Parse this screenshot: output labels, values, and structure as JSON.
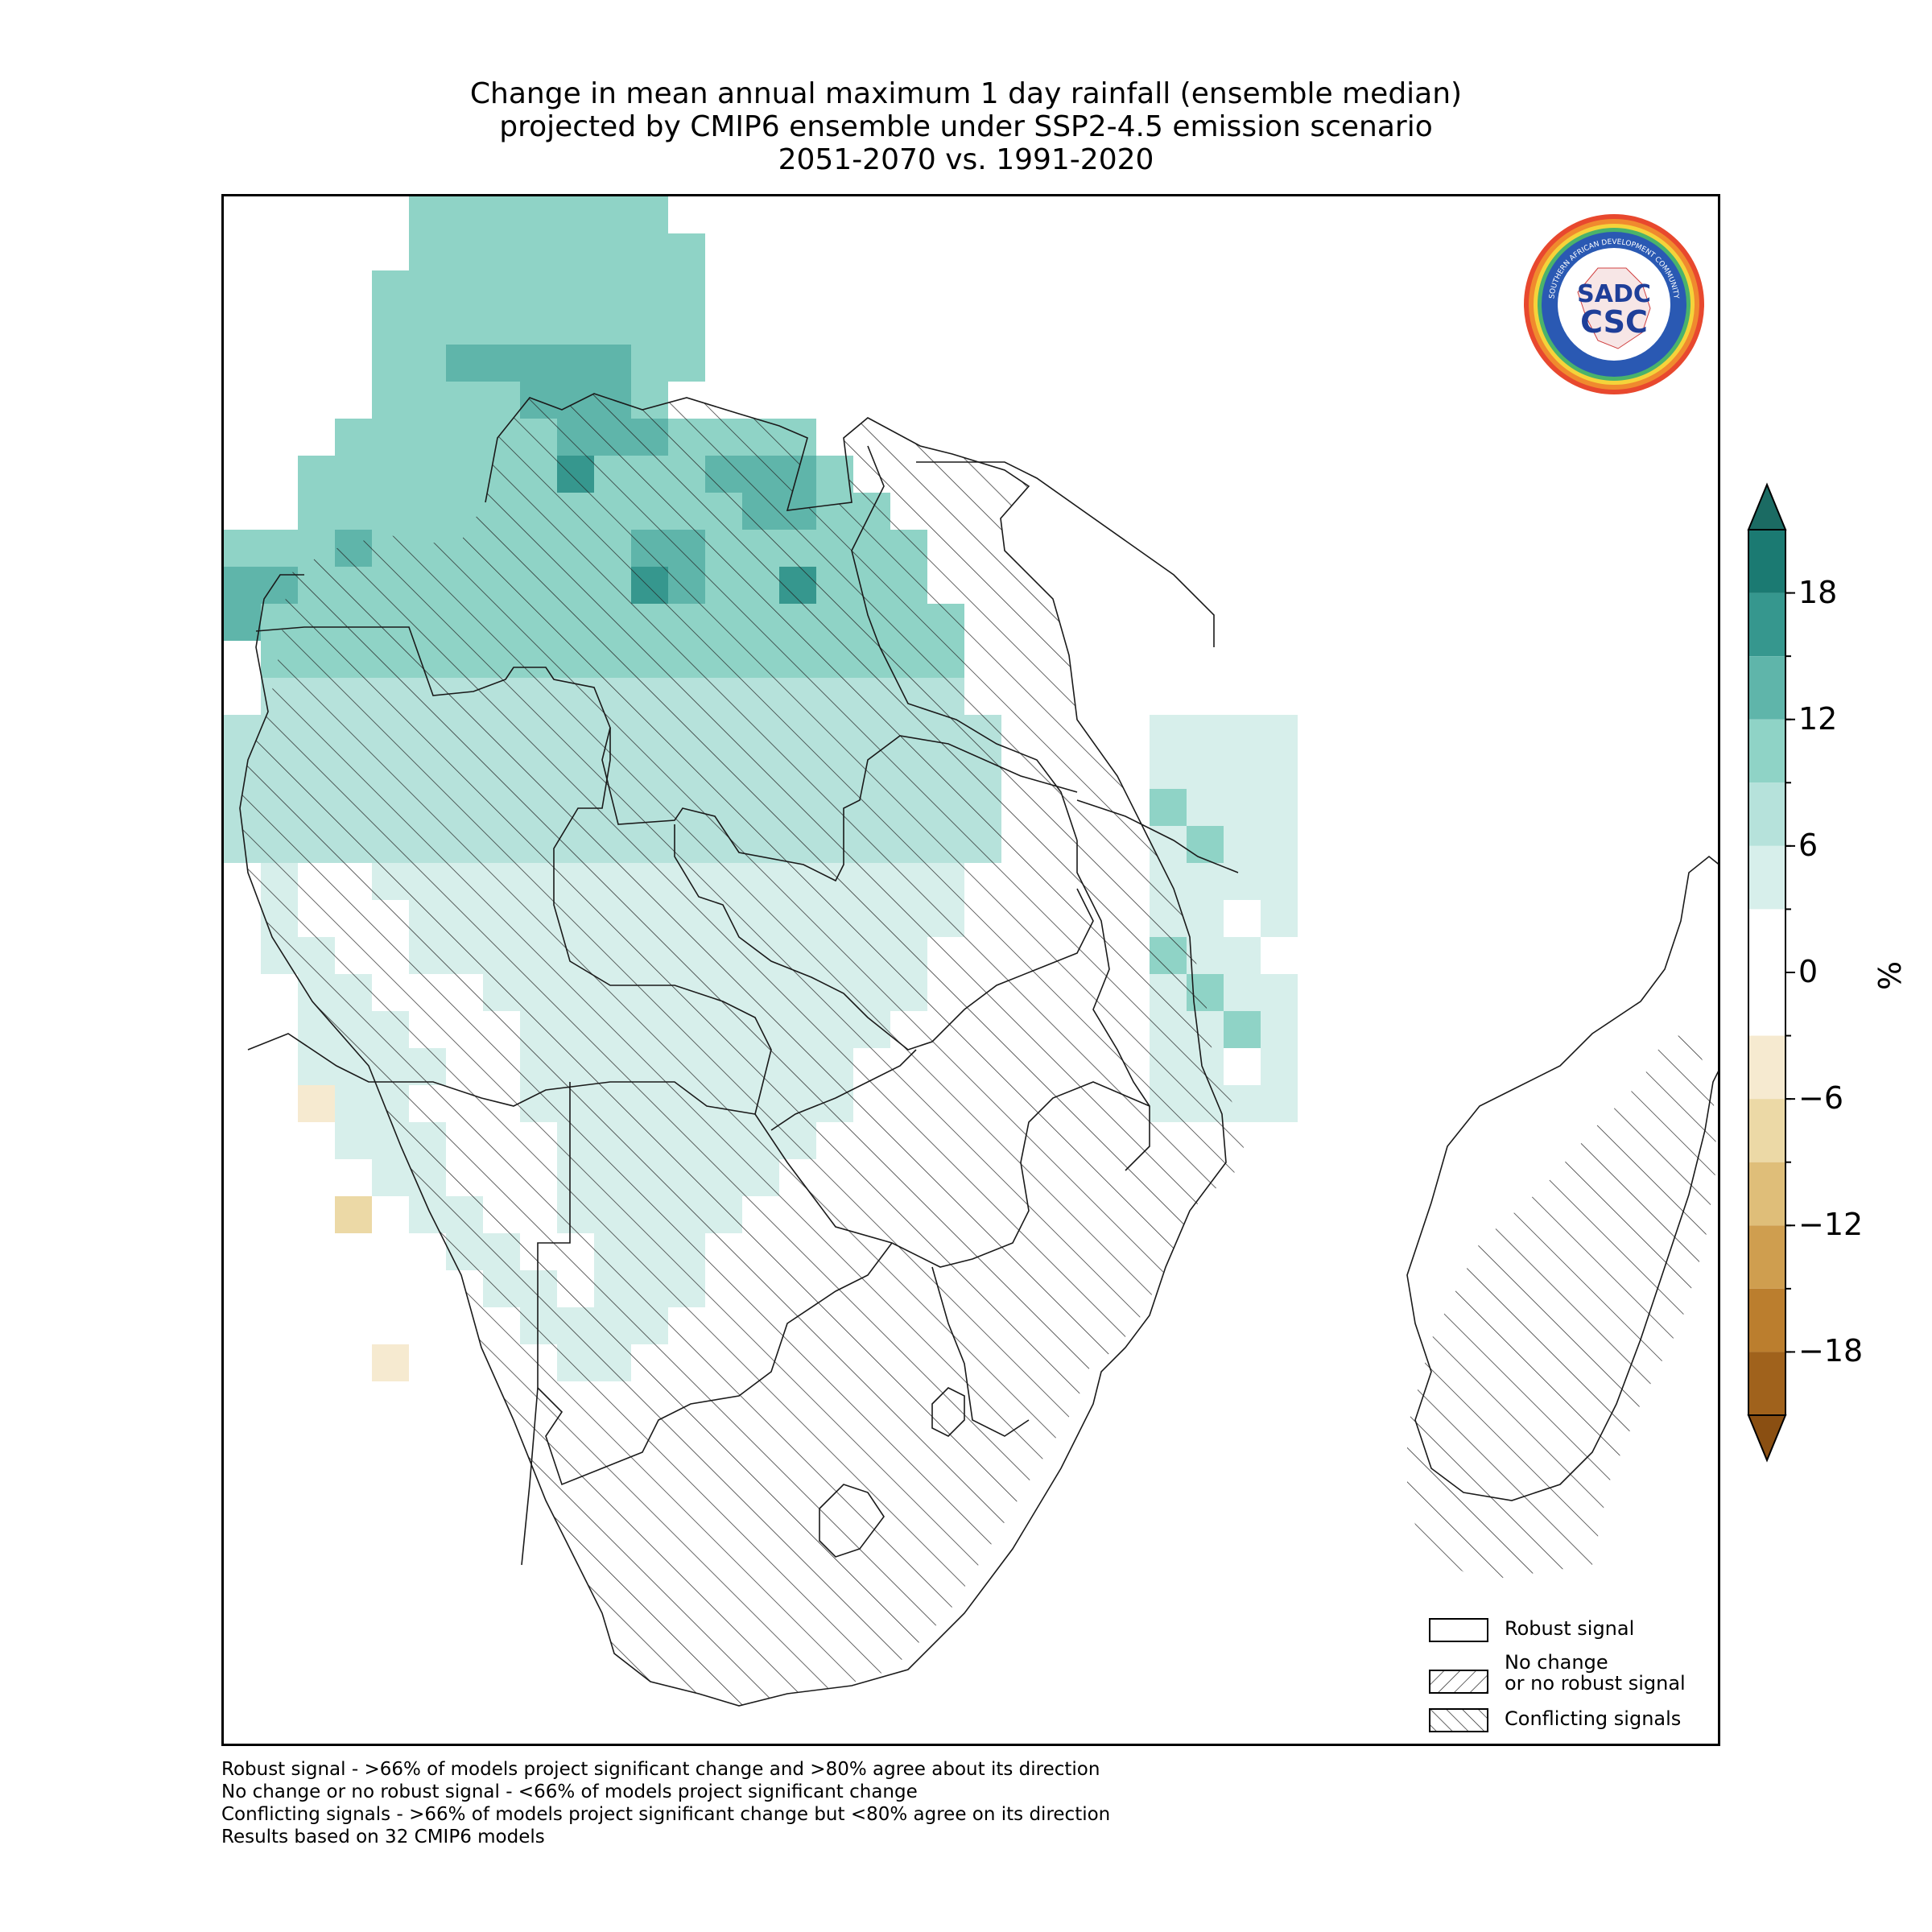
{
  "title": {
    "line1": "Change in mean annual maximum 1 day rainfall (ensemble median)",
    "line2": "projected by CMIP6 ensemble under SSP2-4.5 emission scenario",
    "line3": "2051-2070 vs. 1991-2020"
  },
  "logo": {
    "arc_text_top": "SOUTHERN AFRICAN DEVELOPMENT COMMUNITY",
    "arc_text_bottom": "CLIMATE SERVICES CENTRE",
    "mark_top": "SADC",
    "mark_bottom": "CSC"
  },
  "colorbar": {
    "unit": "%",
    "tick_labels": [
      "18",
      "12",
      "6",
      "0",
      "−6",
      "−12",
      "−18"
    ],
    "tick_values": [
      18,
      12,
      6,
      0,
      -6,
      -12,
      -18
    ],
    "range": [
      -21,
      21
    ],
    "bins": [
      {
        "from": 18,
        "to": 21,
        "color": "#1b7a72"
      },
      {
        "from": 15,
        "to": 18,
        "color": "#36978e"
      },
      {
        "from": 12,
        "to": 15,
        "color": "#5fb5aa"
      },
      {
        "from": 9,
        "to": 12,
        "color": "#8fd3c6"
      },
      {
        "from": 6,
        "to": 9,
        "color": "#b6e2db"
      },
      {
        "from": 3,
        "to": 6,
        "color": "#d7efeb"
      },
      {
        "from": -3,
        "to": 3,
        "color": "#ffffff"
      },
      {
        "from": -6,
        "to": -3,
        "color": "#f6ead0"
      },
      {
        "from": -9,
        "to": -6,
        "color": "#ecd9a6"
      },
      {
        "from": -12,
        "to": -9,
        "color": "#dfbe79"
      },
      {
        "from": -15,
        "to": -12,
        "color": "#cf9e4f"
      },
      {
        "from": -18,
        "to": -15,
        "color": "#bb7e2e"
      },
      {
        "from": -21,
        "to": -18,
        "color": "#a0621c"
      }
    ],
    "extend_max_color": "#1b6b63",
    "extend_min_color": "#8a4f12"
  },
  "legend": {
    "robust": "Robust signal",
    "no_change_line1": "No change",
    "no_change_line2": "or no robust signal",
    "conflicting": "Conflicting signals"
  },
  "footnotes": [
    "Robust signal - >66% of models project significant change and >80% agree about its direction",
    "No change or no robust signal - <66% of models project significant change",
    "Conflicting signals - >66% of models project significant change but <80% agree on its direction",
    "Results based on 32 CMIP6 models"
  ]
}
